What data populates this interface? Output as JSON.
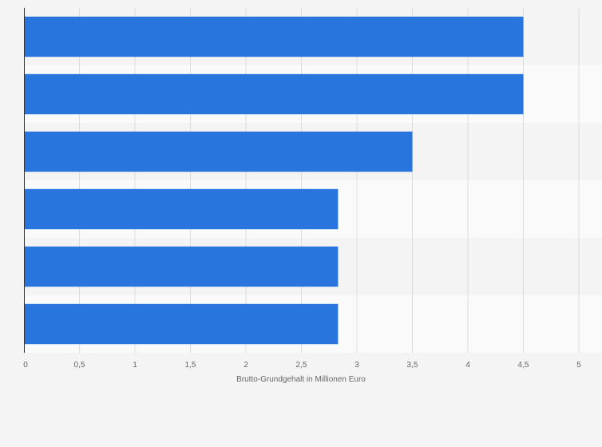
{
  "chart_data": {
    "type": "bar",
    "orientation": "horizontal",
    "categories": [
      "",
      "",
      "",
      "",
      "",
      ""
    ],
    "values": [
      4.5,
      4.5,
      3.5,
      2.83,
      2.83,
      2.83
    ],
    "title": "",
    "xlabel": "Brutto-Grundgehalt in Millionen Euro",
    "ylabel": "",
    "xlim": [
      0,
      5
    ],
    "x_ticks": [
      0,
      0.5,
      1,
      1.5,
      2,
      2.5,
      3,
      3.5,
      4,
      4.5,
      5
    ],
    "x_tick_labels": [
      "0",
      "0,5",
      "1",
      "1,5",
      "2",
      "2,5",
      "3",
      "3,5",
      "4",
      "4,5",
      "5"
    ],
    "grid": true,
    "legend": "none",
    "colors": {
      "bar": "#2876dd",
      "background": "#f4f4f4",
      "band_alt": "#fafafa",
      "grid": "#dddddd",
      "axis": "#333333",
      "text": "#666666"
    }
  }
}
